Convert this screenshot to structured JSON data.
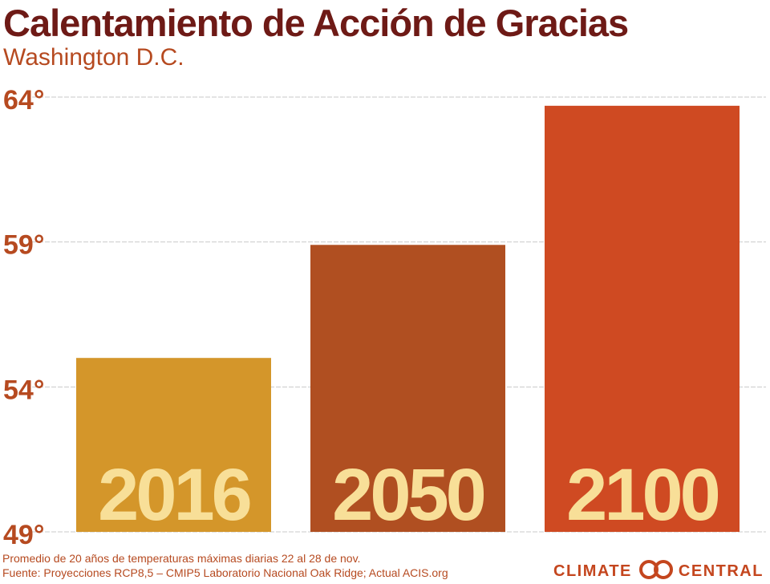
{
  "header": {
    "title": "Calentamiento de Acción de Gracias",
    "subtitle": "Washington D.C."
  },
  "footer": {
    "note": "Promedio de 20 años de temperaturas máximas diarias 22 al 28 de nov.",
    "source": "Fuente: Proyecciones RCP8,5 – CMIP5 Laboratorio Nacional Oak Ridge; Actual ACIS.org",
    "logo_left": "CLIMATE",
    "logo_right": "CENTRAL",
    "logo_icon": "interlocking-rings-icon"
  },
  "colors": {
    "title": "#6e1a16",
    "accent": "#b64a20",
    "grid": "#c9c9c9",
    "bar_2016": "#d4962a",
    "bar_2050": "#b04f21",
    "bar_2100": "#cf4a22",
    "bar_label": "#f8df98"
  },
  "chart_data": {
    "type": "bar",
    "categories": [
      "2016",
      "2050",
      "2100"
    ],
    "values": [
      55.0,
      58.9,
      63.7
    ],
    "bar_colors": [
      "#d4962a",
      "#b04f21",
      "#cf4a22"
    ],
    "y_ticks": [
      49,
      54,
      59,
      64
    ],
    "y_tick_labels": [
      "49°",
      "54°",
      "59°",
      "64°"
    ],
    "ylim": [
      49,
      64
    ],
    "grid": true,
    "title": "Calentamiento de Acción de Gracias",
    "subtitle": "Washington D.C."
  }
}
